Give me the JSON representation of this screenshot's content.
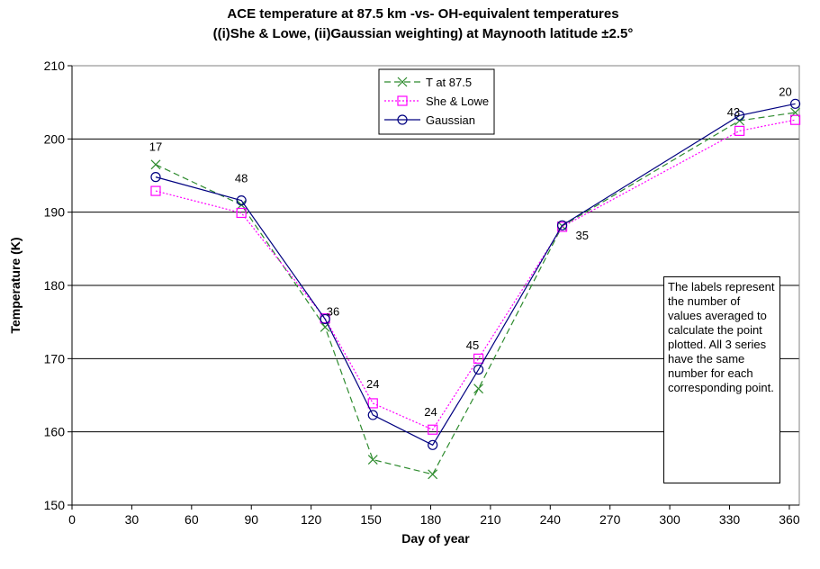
{
  "chart_data": {
    "type": "line",
    "title_line1": "ACE temperature at 87.5 km -vs- OH-equivalent temperatures",
    "title_line2": "((i)She & Lowe, (ii)Gaussian weighting) at Maynooth latitude ±2.5°",
    "xlabel": "Day of year",
    "ylabel": "Temperature (K)",
    "xlim": [
      0,
      365
    ],
    "ylim": [
      150,
      210
    ],
    "xticks": [
      0,
      30,
      60,
      90,
      120,
      150,
      180,
      210,
      240,
      270,
      300,
      330,
      360
    ],
    "yticks": [
      150,
      160,
      170,
      180,
      190,
      200,
      210
    ],
    "grid": "horizontal",
    "legend_position": "top-center",
    "series": [
      {
        "name": "T at 87.5",
        "color": "#2e8b2e",
        "marker": "x",
        "line_style": "dashed",
        "points": [
          [
            42,
            196.5
          ],
          [
            85,
            191
          ],
          [
            127,
            174.3
          ],
          [
            151,
            156.2
          ],
          [
            181,
            154.2
          ],
          [
            204,
            165.9
          ],
          [
            246,
            188.1
          ],
          [
            335,
            202.5
          ],
          [
            363,
            203.6
          ]
        ]
      },
      {
        "name": "She & Lowe",
        "color": "#ff00ff",
        "marker": "square",
        "line_style": "dotted",
        "points": [
          [
            42,
            192.9
          ],
          [
            85,
            189.9
          ],
          [
            127,
            175.5
          ],
          [
            151,
            163.9
          ],
          [
            181,
            160.3
          ],
          [
            204,
            170
          ],
          [
            246,
            188
          ],
          [
            335,
            201.1
          ],
          [
            363,
            202.6
          ]
        ]
      },
      {
        "name": "Gaussian",
        "color": "#000080",
        "marker": "circle",
        "line_style": "solid",
        "points": [
          [
            42,
            194.8
          ],
          [
            85,
            191.6
          ],
          [
            127,
            175.4
          ],
          [
            151,
            162.3
          ],
          [
            181,
            158.2
          ],
          [
            204,
            168.5
          ],
          [
            246,
            188.2
          ],
          [
            335,
            203.2
          ],
          [
            363,
            204.8
          ]
        ]
      }
    ],
    "point_labels": [
      {
        "text": "17",
        "x": 42,
        "y": 199
      },
      {
        "text": "48",
        "x": 85,
        "y": 194.7
      },
      {
        "text": "36",
        "x": 131,
        "y": 176.5
      },
      {
        "text": "24",
        "x": 151,
        "y": 166.6
      },
      {
        "text": "24",
        "x": 180,
        "y": 162.8
      },
      {
        "text": "45",
        "x": 201,
        "y": 171.9
      },
      {
        "text": "35",
        "x": 256,
        "y": 186.9
      },
      {
        "text": "43",
        "x": 332,
        "y": 203.7
      },
      {
        "text": "20",
        "x": 358,
        "y": 206.5
      }
    ],
    "note": "The labels represent the number of values averaged to calculate the point plotted.  All 3 series have the same number for each corresponding point."
  }
}
